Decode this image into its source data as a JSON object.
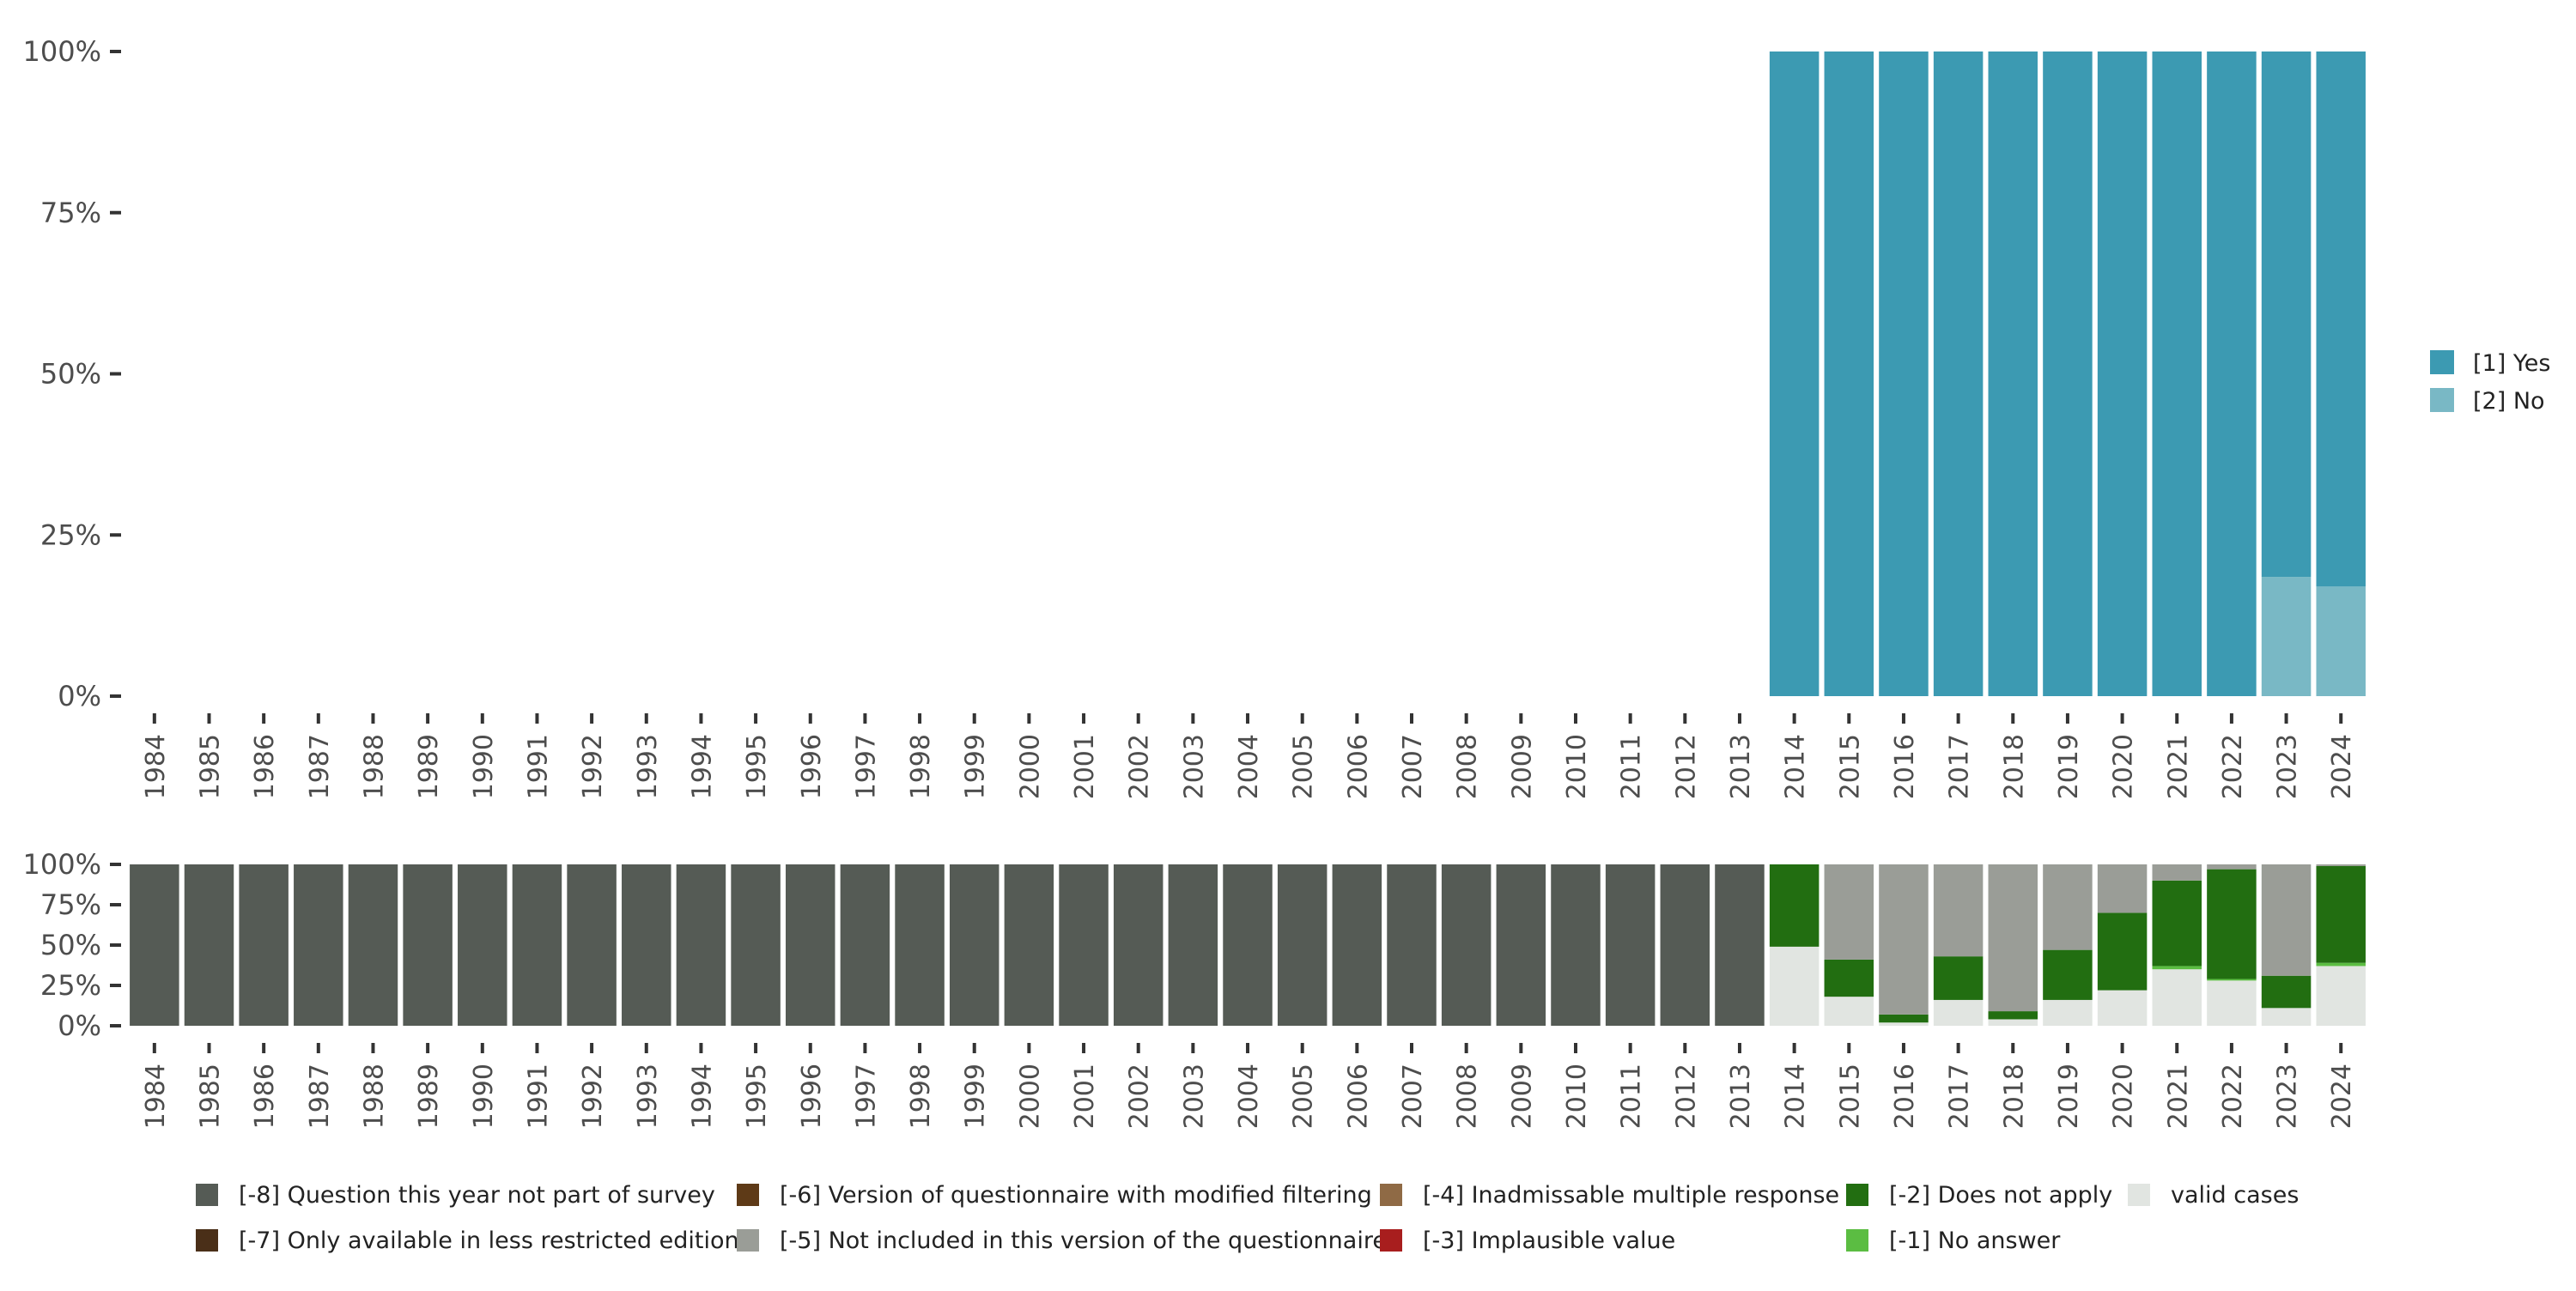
{
  "chart_data": [
    {
      "type": "bar",
      "stacked": true,
      "categories": [
        "1984",
        "1985",
        "1986",
        "1987",
        "1988",
        "1989",
        "1990",
        "1991",
        "1992",
        "1993",
        "1994",
        "1995",
        "1996",
        "1997",
        "1998",
        "1999",
        "2000",
        "2001",
        "2002",
        "2003",
        "2004",
        "2005",
        "2006",
        "2007",
        "2008",
        "2009",
        "2010",
        "2011",
        "2012",
        "2013",
        "2014",
        "2015",
        "2016",
        "2017",
        "2018",
        "2019",
        "2020",
        "2021",
        "2022",
        "2023",
        "2024"
      ],
      "ylim": [
        0,
        100
      ],
      "yticks": [
        "0%",
        "25%",
        "50%",
        "75%",
        "100%"
      ],
      "legend_position": "right",
      "series": [
        {
          "name": "[2] No",
          "color": "#79B8C5",
          "values": [
            0,
            0,
            0,
            0,
            0,
            0,
            0,
            0,
            0,
            0,
            0,
            0,
            0,
            0,
            0,
            0,
            0,
            0,
            0,
            0,
            0,
            0,
            0,
            0,
            0,
            0,
            0,
            0,
            0,
            0,
            0,
            0,
            0,
            0,
            0,
            0,
            0,
            0,
            0,
            18.5,
            17
          ]
        },
        {
          "name": "[1] Yes",
          "color": "#3C9AB2",
          "values": [
            0,
            0,
            0,
            0,
            0,
            0,
            0,
            0,
            0,
            0,
            0,
            0,
            0,
            0,
            0,
            0,
            0,
            0,
            0,
            0,
            0,
            0,
            0,
            0,
            0,
            0,
            0,
            0,
            0,
            0,
            100,
            100,
            100,
            100,
            100,
            100,
            100,
            100,
            100,
            81.5,
            83
          ]
        }
      ]
    },
    {
      "type": "bar",
      "stacked": true,
      "categories": [
        "1984",
        "1985",
        "1986",
        "1987",
        "1988",
        "1989",
        "1990",
        "1991",
        "1992",
        "1993",
        "1994",
        "1995",
        "1996",
        "1997",
        "1998",
        "1999",
        "2000",
        "2001",
        "2002",
        "2003",
        "2004",
        "2005",
        "2006",
        "2007",
        "2008",
        "2009",
        "2010",
        "2011",
        "2012",
        "2013",
        "2014",
        "2015",
        "2016",
        "2017",
        "2018",
        "2019",
        "2020",
        "2021",
        "2022",
        "2023",
        "2024"
      ],
      "ylim": [
        0,
        100
      ],
      "yticks": [
        "0%",
        "25%",
        "50%",
        "75%",
        "100%"
      ],
      "legend_position": "bottom",
      "series": [
        {
          "name": "valid cases",
          "color": "#E1E5E1",
          "values": [
            0,
            0,
            0,
            0,
            0,
            0,
            0,
            0,
            0,
            0,
            0,
            0,
            0,
            0,
            0,
            0,
            0,
            0,
            0,
            0,
            0,
            0,
            0,
            0,
            0,
            0,
            0,
            0,
            0,
            0,
            49,
            18,
            2,
            16,
            4,
            16,
            22,
            35,
            28,
            11,
            37
          ]
        },
        {
          "name": "[-1] No answer",
          "color": "#5BBD42",
          "values": [
            0,
            0,
            0,
            0,
            0,
            0,
            0,
            0,
            0,
            0,
            0,
            0,
            0,
            0,
            0,
            0,
            0,
            0,
            0,
            0,
            0,
            0,
            0,
            0,
            0,
            0,
            0,
            0,
            0,
            0,
            0,
            0,
            0,
            0,
            0,
            0,
            0,
            2,
            1,
            0,
            2
          ]
        },
        {
          "name": "[-2] Does not apply",
          "color": "#226E11",
          "values": [
            0,
            0,
            0,
            0,
            0,
            0,
            0,
            0,
            0,
            0,
            0,
            0,
            0,
            0,
            0,
            0,
            0,
            0,
            0,
            0,
            0,
            0,
            0,
            0,
            0,
            0,
            0,
            0,
            0,
            0,
            51,
            23,
            5,
            27,
            5,
            31,
            48,
            53,
            68,
            20,
            60
          ]
        },
        {
          "name": "[-3] Implausible value",
          "color": "#A81E1E",
          "values": [
            0,
            0,
            0,
            0,
            0,
            0,
            0,
            0,
            0,
            0,
            0,
            0,
            0,
            0,
            0,
            0,
            0,
            0,
            0,
            0,
            0,
            0,
            0,
            0,
            0,
            0,
            0,
            0,
            0,
            0,
            0,
            0,
            0,
            0,
            0,
            0,
            0,
            0,
            0,
            0,
            0
          ]
        },
        {
          "name": "[-4] Inadmissable multiple response",
          "color": "#8F6A45",
          "values": [
            0,
            0,
            0,
            0,
            0,
            0,
            0,
            0,
            0,
            0,
            0,
            0,
            0,
            0,
            0,
            0,
            0,
            0,
            0,
            0,
            0,
            0,
            0,
            0,
            0,
            0,
            0,
            0,
            0,
            0,
            0,
            0,
            0,
            0,
            0,
            0,
            0,
            0,
            0,
            0,
            0
          ]
        },
        {
          "name": "[-5] Not included in this version of the questionnaire",
          "color": "#9A9D97",
          "values": [
            0,
            0,
            0,
            0,
            0,
            0,
            0,
            0,
            0,
            0,
            0,
            0,
            0,
            0,
            0,
            0,
            0,
            0,
            0,
            0,
            0,
            0,
            0,
            0,
            0,
            0,
            0,
            0,
            0,
            0,
            0,
            59,
            93,
            57,
            91,
            53,
            30,
            10,
            3,
            69,
            1
          ]
        },
        {
          "name": "[-6] Version of questionnaire with modified filtering",
          "color": "#5E3A17",
          "values": [
            0,
            0,
            0,
            0,
            0,
            0,
            0,
            0,
            0,
            0,
            0,
            0,
            0,
            0,
            0,
            0,
            0,
            0,
            0,
            0,
            0,
            0,
            0,
            0,
            0,
            0,
            0,
            0,
            0,
            0,
            0,
            0,
            0,
            0,
            0,
            0,
            0,
            0,
            0,
            0,
            0
          ]
        },
        {
          "name": "[-7] Only available in less restricted edition",
          "color": "#4A2F18",
          "values": [
            0,
            0,
            0,
            0,
            0,
            0,
            0,
            0,
            0,
            0,
            0,
            0,
            0,
            0,
            0,
            0,
            0,
            0,
            0,
            0,
            0,
            0,
            0,
            0,
            0,
            0,
            0,
            0,
            0,
            0,
            0,
            0,
            0,
            0,
            0,
            0,
            0,
            0,
            0,
            0,
            0
          ]
        },
        {
          "name": "[-8] Question this year not part of survey",
          "color": "#555B55",
          "values": [
            100,
            100,
            100,
            100,
            100,
            100,
            100,
            100,
            100,
            100,
            100,
            100,
            100,
            100,
            100,
            100,
            100,
            100,
            100,
            100,
            100,
            100,
            100,
            100,
            100,
            100,
            100,
            100,
            100,
            100,
            0,
            0,
            0,
            0,
            0,
            0,
            0,
            0,
            0,
            0,
            0
          ]
        }
      ]
    }
  ],
  "legend_top": [
    {
      "name": "[1] Yes",
      "color": "#3C9AB2"
    },
    {
      "name": "[2] No",
      "color": "#79B8C5"
    }
  ],
  "legend_bottom": [
    {
      "name": "[-8] Question this year not part of survey",
      "color": "#555B55"
    },
    {
      "name": "[-7] Only available in less restricted edition",
      "color": "#4A2F18"
    },
    {
      "name": "[-6] Version of questionnaire with modified filtering",
      "color": "#5E3A17"
    },
    {
      "name": "[-5] Not included in this version of the questionnaire",
      "color": "#9A9D97"
    },
    {
      "name": "[-4] Inadmissable multiple response",
      "color": "#8F6A45"
    },
    {
      "name": "[-3] Implausible value",
      "color": "#A81E1E"
    },
    {
      "name": "[-2] Does not apply",
      "color": "#226E11"
    },
    {
      "name": "[-1] No answer",
      "color": "#5BBD42"
    },
    {
      "name": "valid cases",
      "color": "#E1E5E1"
    }
  ]
}
